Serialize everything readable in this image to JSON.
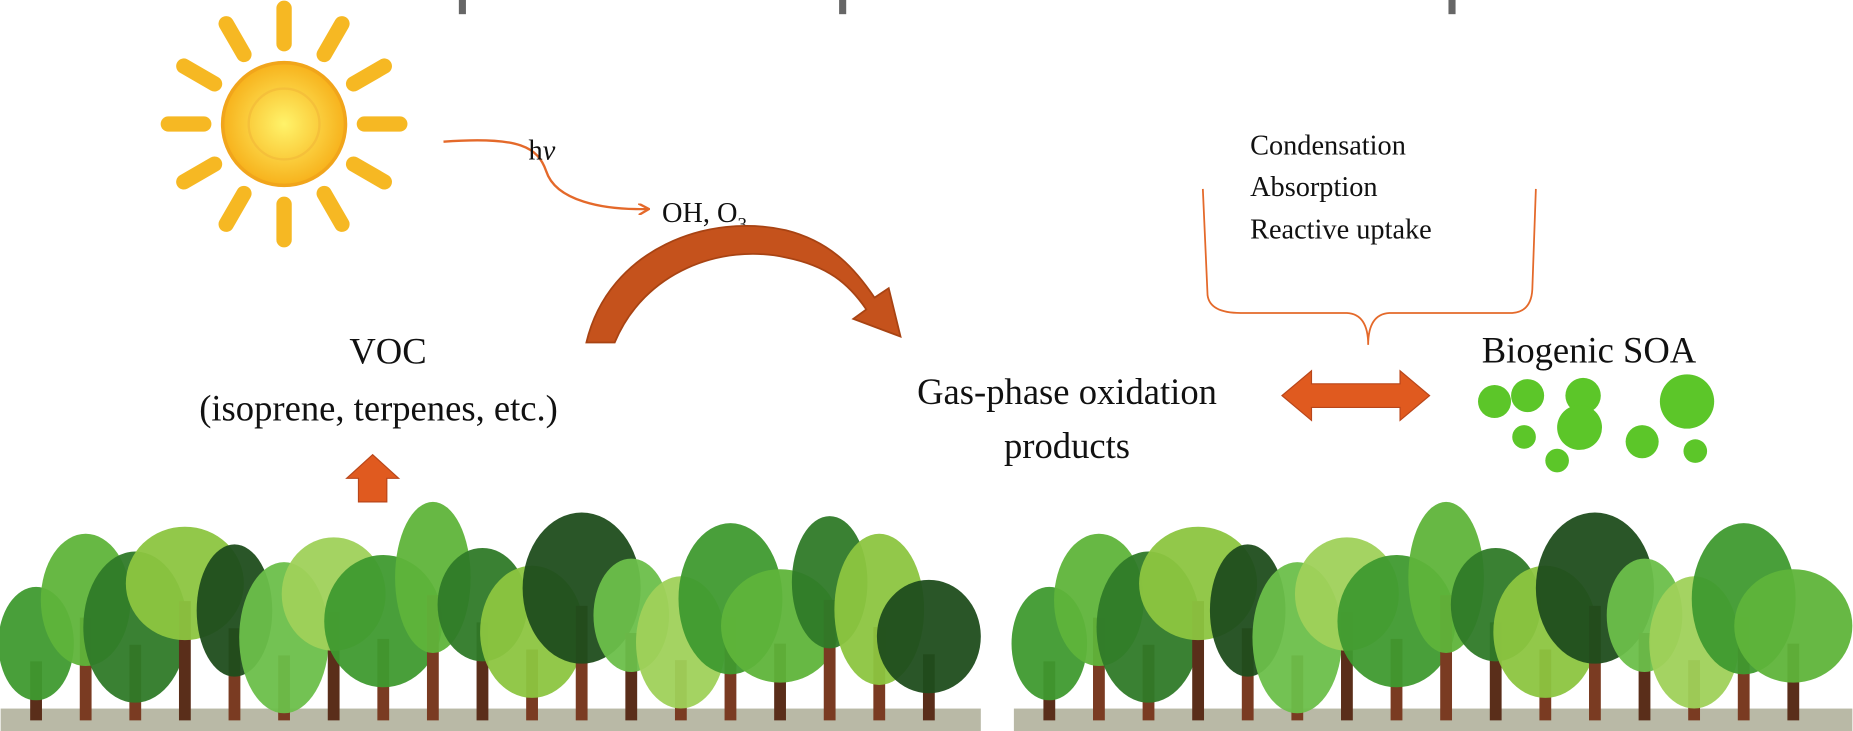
{
  "photolysis": {
    "label": "h",
    "label_italic": "ν"
  },
  "oxidants": {
    "text": "OH, O",
    "subscript": "3"
  },
  "uptake_processes": [
    "Condensation",
    "Absorption",
    "Reactive uptake"
  ],
  "voc": {
    "title": "VOC",
    "examples": "(isoprene, terpenes, etc.)"
  },
  "products": {
    "lines": [
      "Gas-phase oxidation",
      "products"
    ]
  },
  "soa": {
    "label": "Biogenic SOA"
  }
}
